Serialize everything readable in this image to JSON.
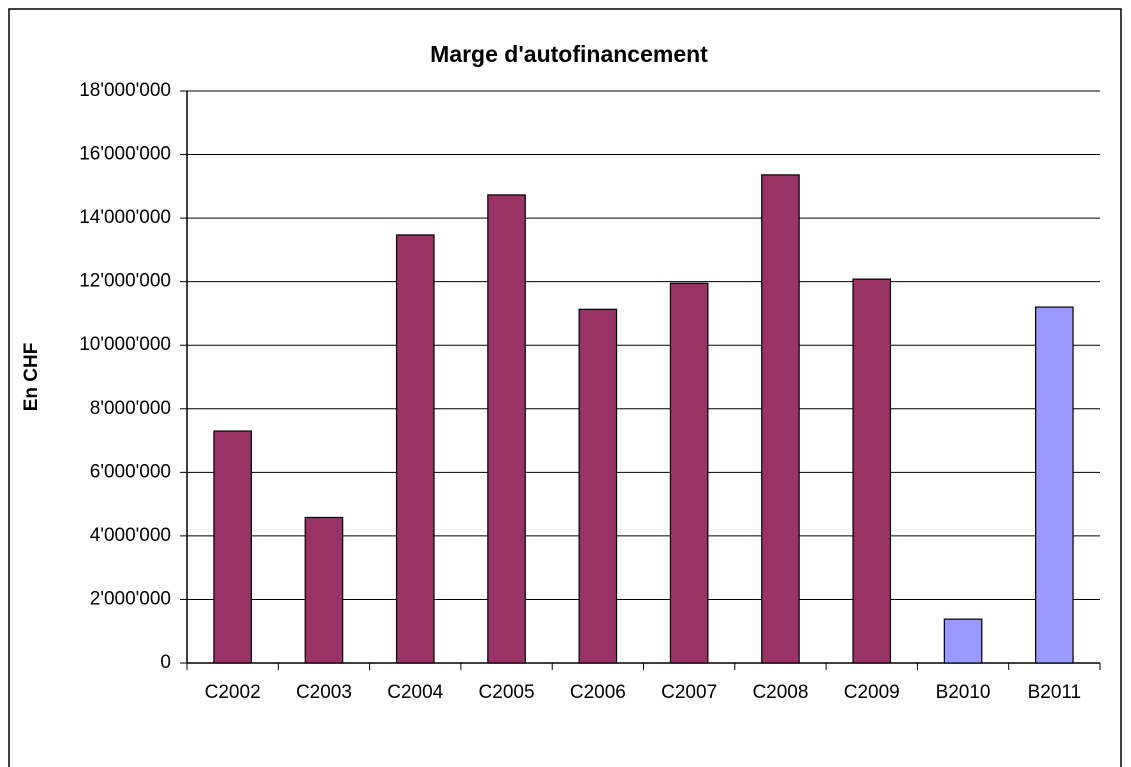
{
  "chart_data": {
    "type": "bar",
    "title": "Marge d'autofinancement",
    "y_label": "En CHF",
    "categories": [
      "C2002",
      "C2003",
      "C2004",
      "C2005",
      "C2006",
      "C2007",
      "C2008",
      "C2009",
      "B2010",
      "B2011"
    ],
    "values": [
      7300000,
      4580000,
      13470000,
      14730000,
      11130000,
      11950000,
      15360000,
      12080000,
      1380000,
      11200000
    ],
    "colors": [
      "#993366",
      "#993366",
      "#993366",
      "#993366",
      "#993366",
      "#993366",
      "#993366",
      "#993366",
      "#9999ff",
      "#9999ff"
    ],
    "ylim": [
      0,
      18000000
    ],
    "yticks": [
      0,
      {
        "value": 2000000,
        "label": "2'000'000"
      },
      {
        "value": 4000000,
        "label": "4'000'000"
      },
      {
        "value": 6000000,
        "label": "6'000'000"
      },
      {
        "value": 8000000,
        "label": "8'000'000"
      },
      {
        "value": 10000000,
        "label": "10'000'000"
      },
      {
        "value": 12000000,
        "label": "12'000'000"
      },
      {
        "value": 14000000,
        "label": "14'000'000"
      },
      {
        "value": 16000000,
        "label": "16'000'000"
      },
      {
        "value": 18000000,
        "label": "18'000'000"
      }
    ],
    "grid": true
  }
}
